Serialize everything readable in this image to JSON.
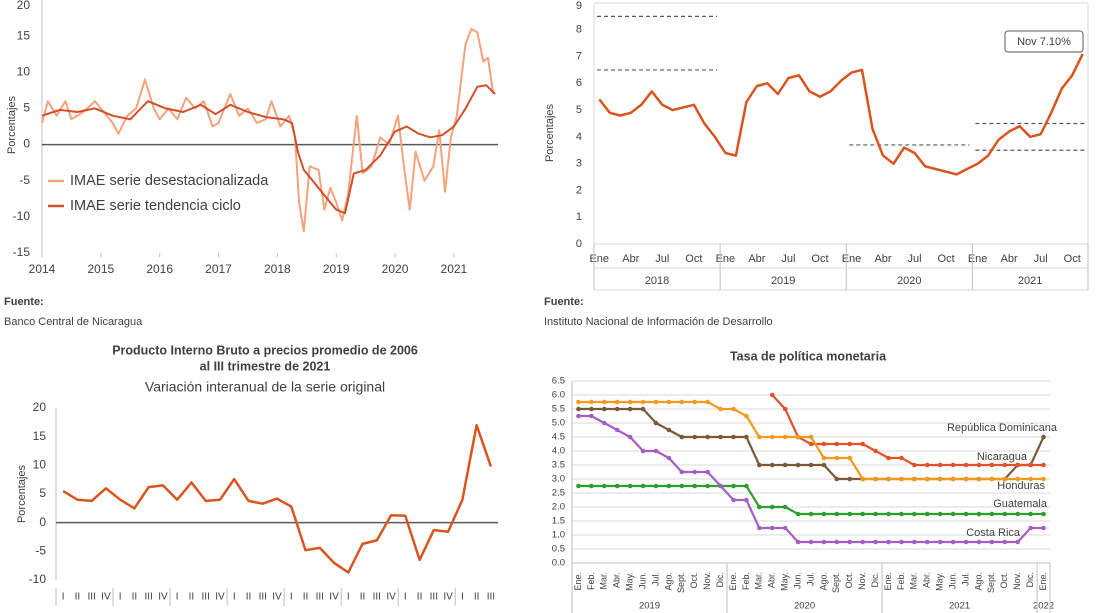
{
  "chart_data": [
    {
      "type": "line",
      "ylabel": "Porcentajes",
      "ylim": [
        -15,
        20
      ],
      "yticks": [
        -15,
        -10,
        -5,
        0,
        5,
        10,
        15,
        20
      ],
      "xlim": [
        2014,
        2021.75
      ],
      "xticks": [
        2014,
        2015,
        2016,
        2017,
        2018,
        2019,
        2020,
        2021
      ],
      "legend": "lower left",
      "source_label": "Fuente:",
      "source": "Banco Central de Nicaragua",
      "series": [
        {
          "name": "IMAE serie desestacionalizada",
          "color": "#f6a27c",
          "x": [
            2014.0,
            2014.1,
            2014.25,
            2014.4,
            2014.5,
            2014.7,
            2014.9,
            2015.0,
            2015.2,
            2015.3,
            2015.45,
            2015.6,
            2015.75,
            2015.9,
            2016.0,
            2016.15,
            2016.3,
            2016.45,
            2016.6,
            2016.75,
            2016.9,
            2017.0,
            2017.1,
            2017.2,
            2017.35,
            2017.5,
            2017.65,
            2017.8,
            2017.9,
            2018.05,
            2018.2,
            2018.3,
            2018.37,
            2018.45,
            2018.55,
            2018.7,
            2018.8,
            2018.9,
            2019.0,
            2019.1,
            2019.2,
            2019.35,
            2019.45,
            2019.6,
            2019.75,
            2019.9,
            2020.05,
            2020.15,
            2020.25,
            2020.35,
            2020.5,
            2020.65,
            2020.75,
            2020.85,
            2020.95,
            2021.05,
            2021.2,
            2021.3,
            2021.4,
            2021.5,
            2021.58,
            2021.67
          ],
          "values": [
            3,
            6,
            4,
            6,
            3.5,
            4.5,
            6,
            5,
            3,
            1.5,
            4,
            5,
            9,
            5,
            3.5,
            5,
            3.5,
            6.5,
            5,
            6,
            2.5,
            3,
            5,
            7,
            4,
            5,
            3,
            3.5,
            6,
            2.5,
            4,
            1,
            -8,
            -12,
            -3,
            -3.5,
            -9,
            -6,
            -8,
            -10.5,
            -7,
            4,
            -4,
            -3,
            1,
            0,
            4,
            -3,
            -9,
            -1,
            -5,
            -3,
            2,
            -6.5,
            1,
            4,
            14,
            16,
            15.5,
            11.5,
            12,
            7
          ]
        },
        {
          "name": "IMAE serie  tendencia ciclo",
          "color": "#d0502a",
          "x": [
            2014.0,
            2014.3,
            2014.6,
            2014.9,
            2015.2,
            2015.5,
            2015.8,
            2016.1,
            2016.4,
            2016.7,
            2016.95,
            2017.2,
            2017.5,
            2017.8,
            2018.1,
            2018.25,
            2018.35,
            2018.45,
            2018.6,
            2018.8,
            2019.0,
            2019.15,
            2019.3,
            2019.5,
            2019.75,
            2020.0,
            2020.2,
            2020.4,
            2020.6,
            2020.8,
            2021.0,
            2021.2,
            2021.4,
            2021.55,
            2021.7
          ],
          "values": [
            4,
            4.8,
            4.5,
            5,
            4,
            3.5,
            6,
            5,
            4.5,
            5.5,
            4.2,
            5.5,
            4.5,
            3.8,
            3.5,
            3,
            -1,
            -3.5,
            -5,
            -7,
            -9,
            -9.5,
            -4,
            -3.5,
            -1.5,
            1.8,
            2.5,
            1.5,
            1,
            1.3,
            2.5,
            5,
            8,
            8.2,
            7
          ]
        }
      ]
    },
    {
      "type": "line",
      "ylabel": "Porcentajes",
      "ylim": [
        0,
        9
      ],
      "yticks": [
        0,
        1,
        2,
        3,
        4,
        5,
        6,
        7,
        8,
        9
      ],
      "color": "#d9541e",
      "annotation": "Nov 7.10%",
      "source_label": "Fuente:",
      "source": "Instituto Nacional de Información de  Desarrollo",
      "years": [
        "2018",
        "2019",
        "2020",
        "2021"
      ],
      "categories": [
        "Ene",
        null,
        null,
        "Abr",
        null,
        null,
        "Jul",
        null,
        null,
        "Oct",
        null,
        null,
        "Ene",
        null,
        null,
        "Abr",
        null,
        null,
        "Jul",
        null,
        null,
        "Oct",
        null,
        null,
        "Ene",
        null,
        null,
        "Abr",
        null,
        null,
        "Jul",
        null,
        null,
        "Oct",
        null,
        null,
        "Ene",
        null,
        null,
        "Abr",
        null,
        null,
        "Jul",
        null,
        null,
        "Oct",
        null
      ],
      "values": [
        5.4,
        4.9,
        4.8,
        4.9,
        5.2,
        5.7,
        5.2,
        5.0,
        5.1,
        5.2,
        4.5,
        4.0,
        3.4,
        3.3,
        5.3,
        5.9,
        6.0,
        5.6,
        6.2,
        6.3,
        5.7,
        5.5,
        5.7,
        6.1,
        6.4,
        6.5,
        4.3,
        3.3,
        3.0,
        3.6,
        3.4,
        2.9,
        2.8,
        2.7,
        2.6,
        2.8,
        3.0,
        3.3,
        3.9,
        4.2,
        4.4,
        4.0,
        4.1,
        4.9,
        5.8,
        6.3,
        7.1
      ],
      "reference_lines": [
        {
          "values": [
            8.5,
            6.5
          ],
          "start": 0,
          "end": 11
        },
        {
          "values": [
            3.7
          ],
          "start": 24,
          "end": 35
        },
        {
          "values": [
            4.5,
            3.5
          ],
          "start": 36,
          "end": 46
        }
      ]
    },
    {
      "type": "line",
      "title": "Producto Interno Bruto a precios promedio de 2006",
      "title2": "al III trimestre de 2021",
      "subtitle": "Variación interanual de la serie original",
      "ylabel": "Porcentajes",
      "ylim": [
        -10,
        20
      ],
      "yticks": [
        -10,
        -5,
        0,
        5,
        10,
        15,
        20
      ],
      "color": "#d9541e",
      "categories": [
        "I",
        "II",
        "III",
        "IV",
        "I",
        "II",
        "III",
        "IV",
        "I",
        "II",
        "III",
        "IV",
        "I",
        "II",
        "III",
        "IV",
        "I",
        "II",
        "III",
        "IV",
        "I",
        "II",
        "III",
        "IV",
        "I",
        "II",
        "III",
        "IV",
        "I",
        "II",
        "III"
      ],
      "values": [
        5.5,
        4.0,
        3.8,
        6.0,
        4.0,
        2.5,
        6.2,
        6.5,
        4.0,
        7.0,
        3.8,
        4.0,
        7.6,
        3.8,
        3.3,
        4.2,
        2.8,
        -4.8,
        -4.4,
        -7.0,
        -8.7,
        -3.7,
        -3.1,
        1.3,
        1.2,
        -6.5,
        -1.3,
        -1.6,
        4.0,
        17.0,
        9.8
      ]
    },
    {
      "type": "line",
      "title": "Tasa de política monetaria",
      "ylim": [
        0,
        6.5
      ],
      "grid": true,
      "markers": true,
      "yticks": [
        {
          "value": 0,
          "label": "0.0"
        },
        0.5,
        {
          "value": 1,
          "label": "1.0"
        },
        1.5,
        {
          "value": 2,
          "label": "2.0"
        },
        2.5,
        {
          "value": 3,
          "label": "3.0"
        },
        3.5,
        {
          "value": 4,
          "label": "4.0"
        },
        4.5,
        {
          "value": 5,
          "label": "5.0"
        },
        5.5,
        {
          "value": 6,
          "label": "6.0"
        },
        6.5
      ],
      "years": [
        "2019",
        "2020",
        "2021",
        "2022"
      ],
      "categories": [
        "Ene.",
        "Feb.",
        "Mar.",
        "Abr.",
        "May.",
        "Jun.",
        "Jul.",
        "Ago.",
        "Sept.",
        "Oct.",
        "Nov.",
        "Dic.",
        "Ene.",
        "Feb.",
        "Mar.",
        "Abr.",
        "May.",
        "Jun.",
        "Jul.",
        "Ago.",
        "Sept.",
        "Oct.",
        "Nov.",
        "Dic.",
        "Ene.",
        "Feb.",
        "Mar.",
        "Abr.",
        "May.",
        "Jun.",
        "Jul.",
        "Ago.",
        "Sept.",
        "Oct.",
        "Nov.",
        "Dic.",
        "Ene."
      ],
      "series": [
        {
          "name": "República Dominicana",
          "color": "#7a5a36",
          "values": [
            5.5,
            5.5,
            5.5,
            5.5,
            5.5,
            5.5,
            5.0,
            4.75,
            4.5,
            4.5,
            4.5,
            4.5,
            4.5,
            4.5,
            3.5,
            3.5,
            3.5,
            3.5,
            3.5,
            3.5,
            3.0,
            3.0,
            3.0,
            3.0,
            3.0,
            3.0,
            3.0,
            3.0,
            3.0,
            3.0,
            3.0,
            3.0,
            3.0,
            3.0,
            3.5,
            3.5,
            4.5
          ]
        },
        {
          "name": "Nicaragua",
          "color": "#e0522a",
          "values": [
            null,
            null,
            null,
            null,
            null,
            null,
            null,
            null,
            null,
            null,
            null,
            null,
            null,
            null,
            null,
            6.0,
            5.5,
            4.5,
            4.25,
            4.25,
            4.25,
            4.25,
            4.25,
            4.0,
            3.75,
            3.75,
            3.5,
            3.5,
            3.5,
            3.5,
            3.5,
            3.5,
            3.5,
            3.5,
            3.5,
            3.5,
            3.5
          ]
        },
        {
          "name": "Honduras",
          "color": "#f39a1e",
          "values": [
            5.75,
            5.75,
            5.75,
            5.75,
            5.75,
            5.75,
            5.75,
            5.75,
            5.75,
            5.75,
            5.75,
            5.5,
            5.5,
            5.25,
            4.5,
            4.5,
            4.5,
            4.5,
            4.5,
            3.75,
            3.75,
            3.75,
            3.0,
            3.0,
            3.0,
            3.0,
            3.0,
            3.0,
            3.0,
            3.0,
            3.0,
            3.0,
            3.0,
            3.0,
            3.0,
            3.0,
            3.0
          ]
        },
        {
          "name": "Guatemala",
          "color": "#2e9e2a",
          "values": [
            2.75,
            2.75,
            2.75,
            2.75,
            2.75,
            2.75,
            2.75,
            2.75,
            2.75,
            2.75,
            2.75,
            2.75,
            2.75,
            2.75,
            2.0,
            2.0,
            2.0,
            1.75,
            1.75,
            1.75,
            1.75,
            1.75,
            1.75,
            1.75,
            1.75,
            1.75,
            1.75,
            1.75,
            1.75,
            1.75,
            1.75,
            1.75,
            1.75,
            1.75,
            1.75,
            1.75,
            1.75
          ]
        },
        {
          "name": "Costa Rica",
          "color": "#a45ec4",
          "values": [
            5.25,
            5.25,
            5.0,
            4.75,
            4.5,
            4.0,
            4.0,
            3.75,
            3.25,
            3.25,
            3.25,
            2.75,
            2.25,
            2.25,
            1.25,
            1.25,
            1.25,
            0.75,
            0.75,
            0.75,
            0.75,
            0.75,
            0.75,
            0.75,
            0.75,
            0.75,
            0.75,
            0.75,
            0.75,
            0.75,
            0.75,
            0.75,
            0.75,
            0.75,
            0.75,
            1.25,
            1.25
          ]
        }
      ]
    }
  ]
}
